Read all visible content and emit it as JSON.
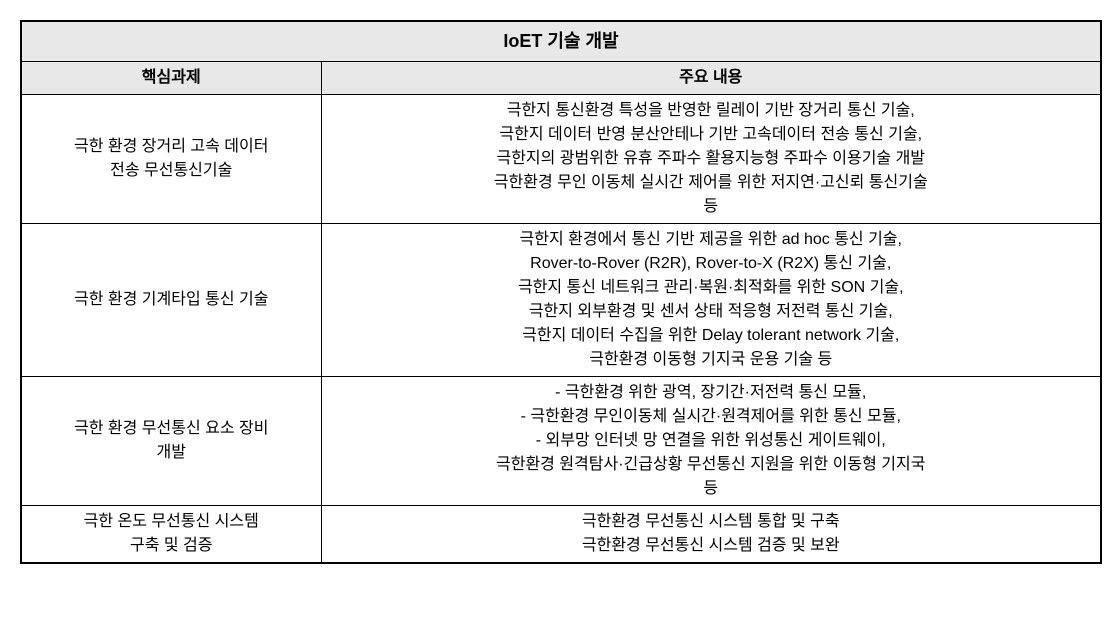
{
  "table": {
    "title": "IoET 기술 개발",
    "headers": {
      "task": "핵심과제",
      "content": "주요 내용"
    },
    "rows": [
      {
        "task": "극한 환경 장거리 고속 데이터\n전송 무선통신기술",
        "content": "극한지 통신환경 특성을 반영한 릴레이 기반 장거리 통신 기술,\n극한지 데이터 반영 분산안테나 기반 고속데이터 전송 통신 기술,\n극한지의 광범위한 유휴 주파수 활용지능형 주파수 이용기술 개발\n극한환경 무인 이동체 실시간 제어를 위한 저지연·고신뢰 통신기술\n등"
      },
      {
        "task": "극한 환경 기계타입 통신 기술",
        "content": "극한지 환경에서 통신 기반 제공을 위한 ad hoc 통신 기술,\nRover-to-Rover (R2R), Rover-to-X (R2X) 통신 기술,\n극한지 통신 네트워크 관리·복원·최적화를 위한 SON 기술,\n극한지 외부환경 및 센서 상태 적응형 저전력 통신 기술,\n극한지 데이터 수집을 위한 Delay tolerant network 기술,\n극한환경 이동형 기지국 운용 기술 등"
      },
      {
        "task": "극한 환경 무선통신 요소 장비\n개발",
        "content": "- 극한환경 위한 광역, 장기간·저전력 통신 모듈,\n- 극한환경 무인이동체 실시간·원격제어를 위한 통신 모듈,\n- 외부망 인터넷 망 연결을 위한 위성통신 게이트웨이,\n극한환경 원격탐사·긴급상황 무선통신 지원을 위한 이동형 기지국\n등"
      },
      {
        "task": "극한 온도 무선통신 시스템\n구축 및 검증",
        "content": "극한환경 무선통신 시스템 통합 및 구축\n극한환경 무선통신 시스템 검증 및 보완"
      }
    ],
    "style": {
      "header_bg": "#e8e8e8",
      "border_color": "#000000",
      "outer_border_width": 2,
      "inner_border_width": 1,
      "font_size_body": 16,
      "font_size_title": 18,
      "col_task_width": 300,
      "col_content_width": 780,
      "background": "#ffffff",
      "text_color": "#000000"
    }
  }
}
